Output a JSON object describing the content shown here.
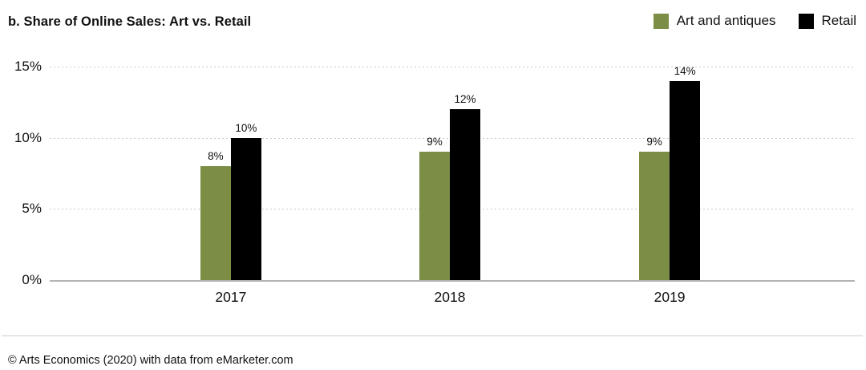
{
  "chart": {
    "title": "b. Share of Online Sales: Art vs. Retail"
  },
  "chart_data": {
    "type": "bar",
    "title": "b. Share of Online Sales: Art vs. Retail",
    "categories": [
      "2017",
      "2018",
      "2019"
    ],
    "series": [
      {
        "name": "Art and antiques",
        "color": "#7c8e45",
        "values": [
          8,
          9,
          9
        ]
      },
      {
        "name": "Retail",
        "color": "#000000",
        "values": [
          10,
          12,
          14
        ]
      }
    ],
    "value_labels": [
      [
        "8%",
        "9%",
        "9%"
      ],
      [
        "10%",
        "12%",
        "14%"
      ]
    ],
    "ylim": [
      0,
      15
    ],
    "yticks": [
      0,
      5,
      10,
      15
    ],
    "ytick_labels": [
      "0%",
      "5%",
      "10%",
      "15%"
    ],
    "grid": "horizontal-dotted",
    "legend_position": "top-right"
  },
  "footer": {
    "source": "© Arts Economics (2020) with data from eMarketer.com"
  },
  "colors": {
    "art": "#7c8e45",
    "retail": "#000000",
    "gridline": "#c9c9c9",
    "axis_line": "#b3b3b3",
    "divider": "#cccccc",
    "text": "#111111"
  }
}
